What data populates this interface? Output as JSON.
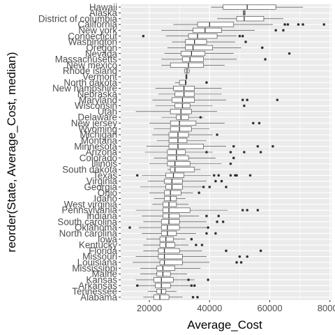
{
  "chart_data": {
    "type": "boxplot",
    "orientation": "horizontal",
    "xlabel": "Average_Cost",
    "ylabel": "reorder(State, Average_Cost, median)",
    "xlim": [
      10500,
      80500
    ],
    "x_ticks": [
      20000,
      40000,
      60000,
      80000
    ],
    "x_tick_labels": [
      "20000",
      "40000",
      "60000",
      "80000"
    ],
    "grid": true,
    "panel_color": "#ebebeb",
    "grid_color": "#ffffff",
    "box_color": "#333333",
    "categories": [
      "Hawaii",
      "Alaska",
      "District of columbia",
      "California",
      "New york",
      "Connecticut",
      "Washington",
      "Oregon",
      "Nevada",
      "Massachusetts",
      "New mexico",
      "Rhode island",
      "Vermont",
      "North dakota",
      "New hampshire",
      "Nebraska",
      "Maryland",
      "Wisconsin",
      "Utah",
      "Delaware",
      "New jersey",
      "Wyoming",
      "Michigan",
      "Montana",
      "Minnesota",
      "Arizona",
      "Colorado",
      "Illinois",
      "South dakota",
      "Texas",
      "Virginia",
      "Georgia",
      "Ohio",
      "Idaho",
      "West virginia",
      "Pennsylvania",
      "Indiana",
      "South carolina",
      "Oklahoma",
      "North carolina",
      "Iowa",
      "Kentucky",
      "Florida",
      "Missouri",
      "Louisiana",
      "Mississippi",
      "Maine",
      "Kansas",
      "Arkansas",
      "Tennessee",
      "Alabama"
    ],
    "boxes": [
      {
        "min": 40500,
        "q1": 44500,
        "median": 52500,
        "q3": 62000,
        "max": 71000,
        "outliers": []
      },
      {
        "min": 51200,
        "q1": 51200,
        "median": 51500,
        "q3": 51800,
        "max": 51800,
        "outliers": []
      },
      {
        "min": 42500,
        "q1": 49000,
        "median": 51500,
        "q3": 58000,
        "max": 64500,
        "outliers": []
      },
      {
        "min": 28000,
        "q1": 36000,
        "median": 40000,
        "q3": 48000,
        "max": 61000,
        "outliers": [
          65000,
          66000,
          69500,
          71000,
          78000
        ]
      },
      {
        "min": 24000,
        "q1": 34500,
        "median": 38500,
        "q3": 44000,
        "max": 55000,
        "outliers": [
          62000,
          64500
        ]
      },
      {
        "min": 25500,
        "q1": 33000,
        "median": 36000,
        "q3": 42500,
        "max": 49000,
        "outliers": [
          18000,
          50000,
          51000
        ]
      },
      {
        "min": 27500,
        "q1": 32000,
        "median": 35000,
        "q3": 39000,
        "max": 48500,
        "outliers": [
          52000
        ]
      },
      {
        "min": 26000,
        "q1": 32000,
        "median": 34500,
        "q3": 41000,
        "max": 50500,
        "outliers": [
          57500
        ]
      },
      {
        "min": 25000,
        "q1": 30500,
        "median": 34000,
        "q3": 38500,
        "max": 48000,
        "outliers": [
          66500
        ]
      },
      {
        "min": 24000,
        "q1": 31000,
        "median": 33500,
        "q3": 38000,
        "max": 49000,
        "outliers": [
          58500
        ]
      },
      {
        "min": 24000,
        "q1": 27000,
        "median": 33000,
        "q3": 38000,
        "max": 45000,
        "outliers": []
      },
      {
        "min": 31500,
        "q1": 31800,
        "median": 32500,
        "q3": 33200,
        "max": 33500,
        "outliers": []
      },
      {
        "min": 32000,
        "q1": 32100,
        "median": 32300,
        "q3": 32500,
        "max": 32600,
        "outliers": []
      },
      {
        "min": 28500,
        "q1": 30000,
        "median": 32000,
        "q3": 32200,
        "max": 32500,
        "outliers": [
          39000
        ]
      },
      {
        "min": 22000,
        "q1": 28000,
        "median": 31500,
        "q3": 35000,
        "max": 44000,
        "outliers": []
      },
      {
        "min": 23000,
        "q1": 28500,
        "median": 31500,
        "q3": 35000,
        "max": 44000,
        "outliers": []
      },
      {
        "min": 21000,
        "q1": 27500,
        "median": 31000,
        "q3": 35000,
        "max": 45500,
        "outliers": [
          51000,
          52500,
          62500
        ]
      },
      {
        "min": 22000,
        "q1": 28500,
        "median": 31000,
        "q3": 33500,
        "max": 41000,
        "outliers": [
          51500
        ]
      },
      {
        "min": 15500,
        "q1": 27000,
        "median": 30500,
        "q3": 34000,
        "max": 42500,
        "outliers": []
      },
      {
        "min": 24000,
        "q1": 29000,
        "median": 30500,
        "q3": 33000,
        "max": 38000,
        "outliers": [
          37000
        ]
      },
      {
        "min": 20000,
        "q1": 27000,
        "median": 30000,
        "q3": 35500,
        "max": 45000,
        "outliers": [
          54500,
          56500
        ]
      },
      {
        "min": 21500,
        "q1": 27000,
        "median": 30000,
        "q3": 34000,
        "max": 40000,
        "outliers": []
      },
      {
        "min": 21000,
        "q1": 26500,
        "median": 29500,
        "q3": 33000,
        "max": 41000,
        "outliers": [
          42500
        ]
      },
      {
        "min": 22500,
        "q1": 26500,
        "median": 29500,
        "q3": 32500,
        "max": 39000,
        "outliers": []
      },
      {
        "min": 19000,
        "q1": 26500,
        "median": 29500,
        "q3": 38000,
        "max": 45500,
        "outliers": [
          48000,
          56000,
          61000
        ]
      },
      {
        "min": 18500,
        "q1": 26000,
        "median": 29000,
        "q3": 32000,
        "max": 41000,
        "outliers": [
          39000,
          47000,
          51500,
          57000
        ]
      },
      {
        "min": 21500,
        "q1": 26000,
        "median": 29000,
        "q3": 33000,
        "max": 42000,
        "outliers": [
          48000
        ]
      },
      {
        "min": 20000,
        "q1": 26000,
        "median": 28500,
        "q3": 33500,
        "max": 44000,
        "outliers": [
          47000
        ]
      },
      {
        "min": 26000,
        "q1": 27000,
        "median": 28500,
        "q3": 35000,
        "max": 37000,
        "outliers": []
      },
      {
        "min": 17500,
        "q1": 25500,
        "median": 28000,
        "q3": 31500,
        "max": 40500,
        "outliers": [
          16000,
          41500,
          43000,
          47000,
          48500,
          49000,
          53500
        ]
      },
      {
        "min": 19500,
        "q1": 25000,
        "median": 27500,
        "q3": 31000,
        "max": 39000,
        "outliers": [
          42000,
          44000
        ]
      },
      {
        "min": 17000,
        "q1": 25500,
        "median": 27500,
        "q3": 31000,
        "max": 37500,
        "outliers": [
          38000,
          40000,
          45500
        ]
      },
      {
        "min": 20000,
        "q1": 25000,
        "median": 27000,
        "q3": 30500,
        "max": 34500,
        "outliers": [
          36500
        ]
      },
      {
        "min": 21500,
        "q1": 25000,
        "median": 27000,
        "q3": 29000,
        "max": 32000,
        "outliers": []
      },
      {
        "min": 21000,
        "q1": 24500,
        "median": 26500,
        "q3": 29000,
        "max": 33000,
        "outliers": []
      },
      {
        "min": 15500,
        "q1": 24500,
        "median": 26500,
        "q3": 33500,
        "max": 46000,
        "outliers": [
          51000,
          52500,
          56000
        ]
      },
      {
        "min": 17500,
        "q1": 24500,
        "median": 26500,
        "q3": 30000,
        "max": 36500,
        "outliers": [
          39000,
          43000
        ]
      },
      {
        "min": 18000,
        "q1": 24000,
        "median": 26500,
        "q3": 30000,
        "max": 39000,
        "outliers": [
          42500,
          44500
        ]
      },
      {
        "min": 16500,
        "q1": 24000,
        "median": 26000,
        "q3": 30000,
        "max": 39000,
        "outliers": [
          13500,
          39500
        ]
      },
      {
        "min": 17500,
        "q1": 24000,
        "median": 26000,
        "q3": 29000,
        "max": 35500,
        "outliers": [
          39000,
          42000
        ]
      },
      {
        "min": 19000,
        "q1": 23500,
        "median": 25500,
        "q3": 28000,
        "max": 32000,
        "outliers": [
          34000
        ]
      },
      {
        "min": 18000,
        "q1": 23500,
        "median": 25500,
        "q3": 28500,
        "max": 33000,
        "outliers": [
          35500,
          37500
        ]
      },
      {
        "min": 18000,
        "q1": 23000,
        "median": 25000,
        "q3": 30000,
        "max": 37500,
        "outliers": [
          45500,
          57000
        ]
      },
      {
        "min": 15500,
        "q1": 23000,
        "median": 25000,
        "q3": 31000,
        "max": 39000,
        "outliers": [
          50000,
          52500
        ]
      },
      {
        "min": 14500,
        "q1": 23500,
        "median": 25000,
        "q3": 31000,
        "max": 40000,
        "outliers": [
          49000,
          50500
        ]
      },
      {
        "min": 17000,
        "q1": 22500,
        "median": 24500,
        "q3": 28500,
        "max": 37000,
        "outliers": []
      },
      {
        "min": 17000,
        "q1": 22500,
        "median": 24500,
        "q3": 27000,
        "max": 32500,
        "outliers": []
      },
      {
        "min": 15500,
        "q1": 21500,
        "median": 24000,
        "q3": 28000,
        "max": 35000,
        "outliers": [
          33000,
          39500
        ]
      },
      {
        "min": 16000,
        "q1": 22000,
        "median": 24000,
        "q3": 27000,
        "max": 33500,
        "outliers": [
          16000,
          34000,
          35000
        ]
      },
      {
        "min": 19500,
        "q1": 22500,
        "median": 24000,
        "q3": 25500,
        "max": 29000,
        "outliers": []
      },
      {
        "min": 18000,
        "q1": 21500,
        "median": 23500,
        "q3": 26500,
        "max": 31000,
        "outliers": [
          34500,
          36000
        ]
      }
    ]
  }
}
